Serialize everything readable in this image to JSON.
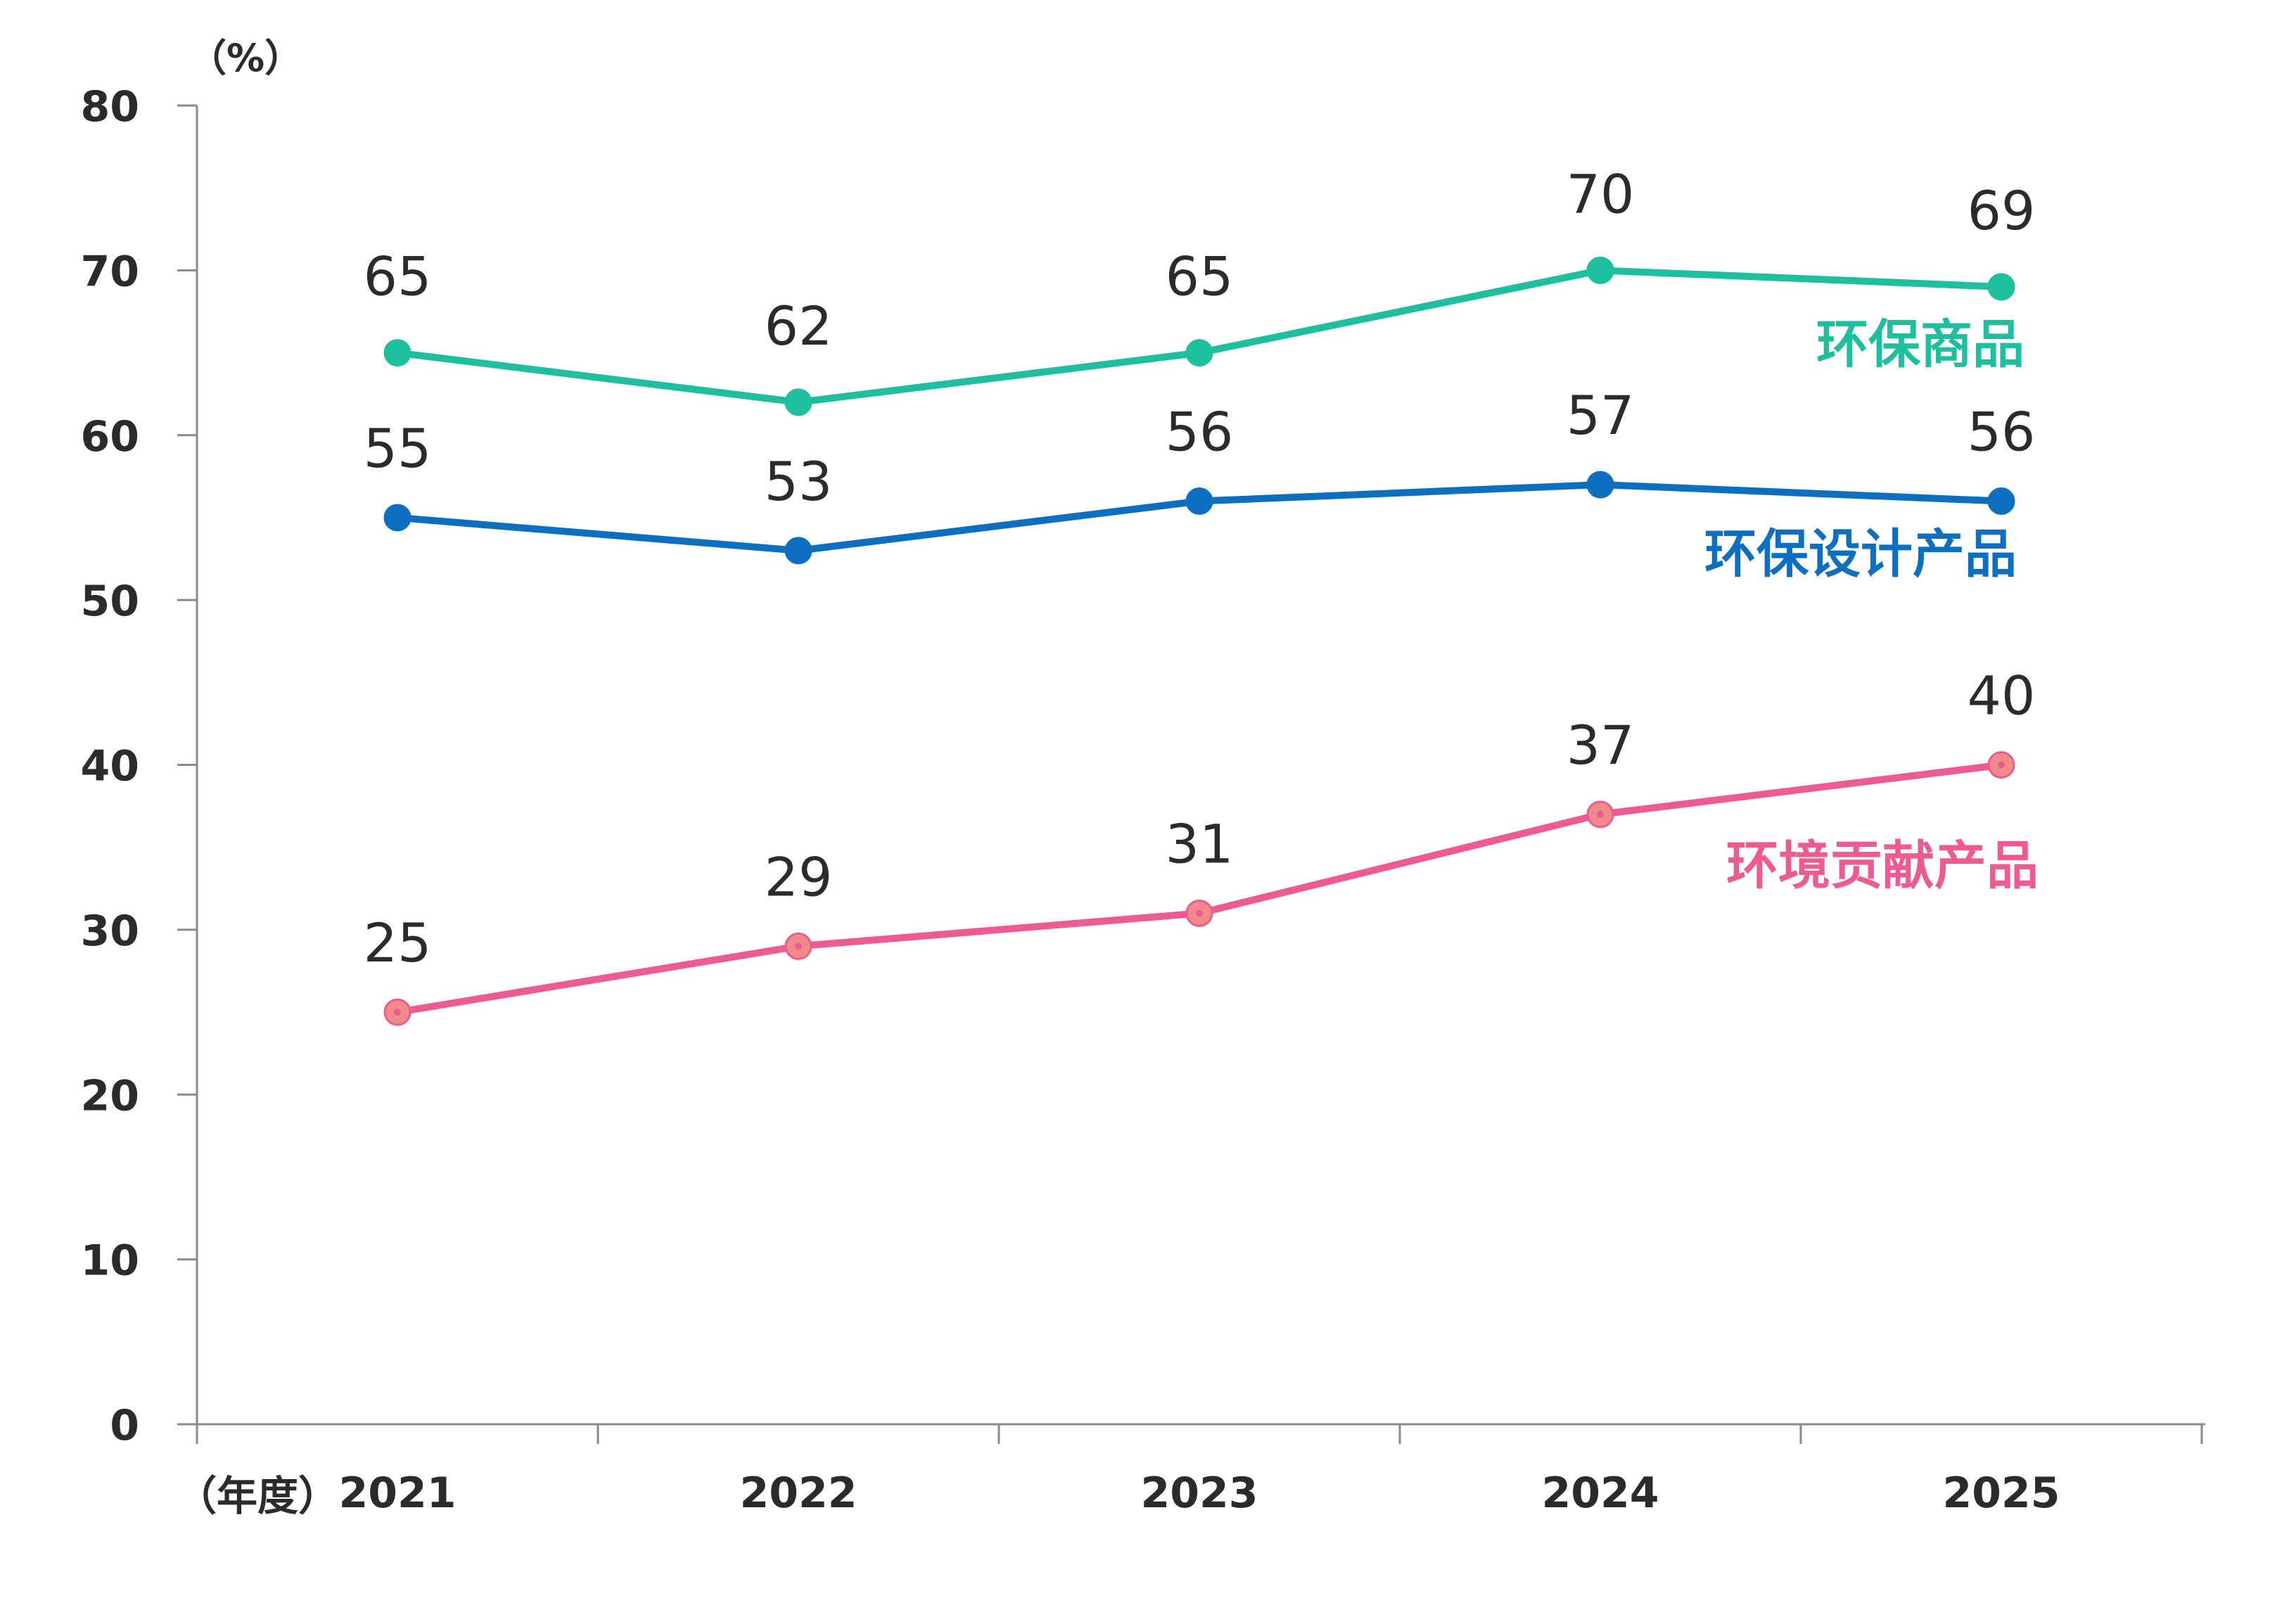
{
  "chart_data": {
    "type": "line",
    "y_unit_label": "（%）",
    "x_unit_label": "（年度）",
    "categories": [
      "2021",
      "2022",
      "2023",
      "2024",
      "2025"
    ],
    "x_ticks": [
      "2021",
      "2022",
      "2023",
      "2024",
      "2025"
    ],
    "y_ticks": [
      "0",
      "10",
      "20",
      "30",
      "40",
      "50",
      "60",
      "70",
      "80"
    ],
    "ylim": [
      0,
      80
    ],
    "grid": false,
    "legend_position": "inline-right",
    "series": [
      {
        "name": "环保商品",
        "color": "#1DBF9E",
        "marker_inner_color": "#1DBF9E",
        "values": [
          65,
          62,
          65,
          70,
          69
        ],
        "value_labels": [
          "65",
          "62",
          "65",
          "70",
          "69"
        ]
      },
      {
        "name": "环保设计产品",
        "color": "#0D6FC0",
        "marker_inner_color": "#0D6FC0",
        "values": [
          55,
          53,
          56,
          57,
          56
        ],
        "value_labels": [
          "55",
          "53",
          "56",
          "57",
          "56"
        ]
      },
      {
        "name": "环境贡献产品",
        "color": "#EE5A92",
        "marker_inner_color": "#F08A8A",
        "values": [
          25,
          29,
          31,
          37,
          40
        ],
        "value_labels": [
          "25",
          "29",
          "31",
          "37",
          "40"
        ]
      }
    ]
  }
}
